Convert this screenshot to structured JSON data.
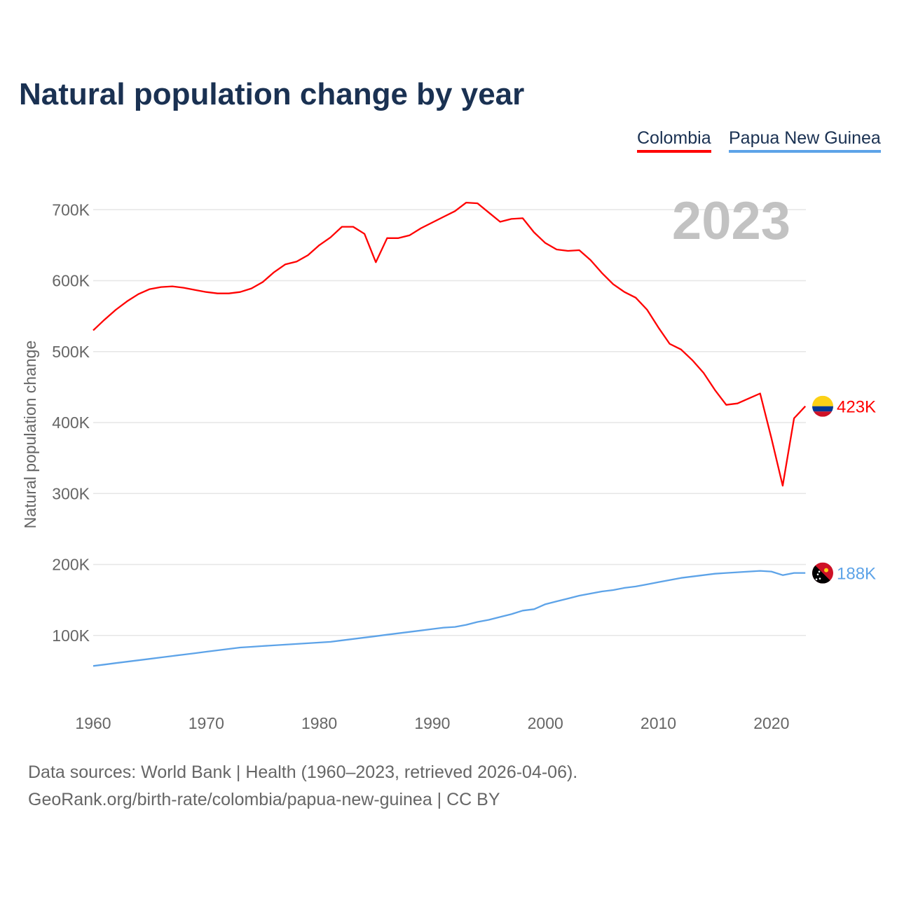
{
  "title": "Natural population change by year",
  "legend": [
    {
      "label": "Colombia",
      "color": "#ff0000"
    },
    {
      "label": "Papua New Guinea",
      "color": "#5da3e8"
    }
  ],
  "year_watermark": "2023",
  "sources": {
    "line1": "Data sources: World Bank | Health (1960–2023, retrieved 2026-04-06).",
    "line2": "GeoRank.org/birth-rate/colombia/papua-new-guinea | CC BY"
  },
  "chart_data": {
    "type": "line",
    "title": "Natural population change by year",
    "xlabel": "",
    "ylabel": "Natural population change",
    "xlim": [
      1960,
      2023
    ],
    "ylim": [
      0,
      750000
    ],
    "x_ticks": [
      "1960",
      "1970",
      "1980",
      "1990",
      "2000",
      "2010",
      "2020"
    ],
    "y_ticks": [
      {
        "value": 100000,
        "label": "100K"
      },
      {
        "value": 200000,
        "label": "200K"
      },
      {
        "value": 300000,
        "label": "300K"
      },
      {
        "value": 400000,
        "label": "400K"
      },
      {
        "value": 500000,
        "label": "500K"
      },
      {
        "value": 600000,
        "label": "600K"
      },
      {
        "value": 700000,
        "label": "700K"
      }
    ],
    "grid": true,
    "legend_position": "top-right",
    "start_year": 1960,
    "series": [
      {
        "name": "Colombia",
        "color": "#ff0000",
        "end_label": "423K",
        "values": [
          530,
          545,
          559,
          571,
          581,
          588,
          591,
          592,
          590,
          587,
          584,
          582,
          582,
          584,
          589,
          598,
          612,
          623,
          627,
          636,
          650,
          661,
          676,
          676,
          666,
          626,
          660,
          660,
          664,
          674,
          682,
          690,
          698,
          710,
          709,
          696,
          683,
          687,
          688,
          668,
          653,
          644,
          642,
          643,
          629,
          611,
          595,
          584,
          576,
          559,
          534,
          511,
          503,
          488,
          470,
          446,
          425,
          427,
          434,
          441,
          378,
          311,
          406,
          423
        ]
      },
      {
        "name": "Papua New Guinea",
        "color": "#5da3e8",
        "end_label": "188K",
        "values": [
          57,
          59,
          61,
          63,
          65,
          67,
          69,
          71,
          73,
          75,
          77,
          79,
          81,
          83,
          84,
          85,
          86,
          87,
          88,
          89,
          90,
          91,
          93,
          95,
          97,
          99,
          101,
          103,
          105,
          107,
          109,
          111,
          112,
          115,
          119,
          122,
          126,
          130,
          135,
          137,
          144,
          148,
          152,
          156,
          159,
          162,
          164,
          167,
          169,
          172,
          175,
          178,
          181,
          183,
          185,
          187,
          188,
          189,
          190,
          191,
          190,
          185,
          188,
          188
        ]
      }
    ],
    "value_unit": "thousands"
  }
}
